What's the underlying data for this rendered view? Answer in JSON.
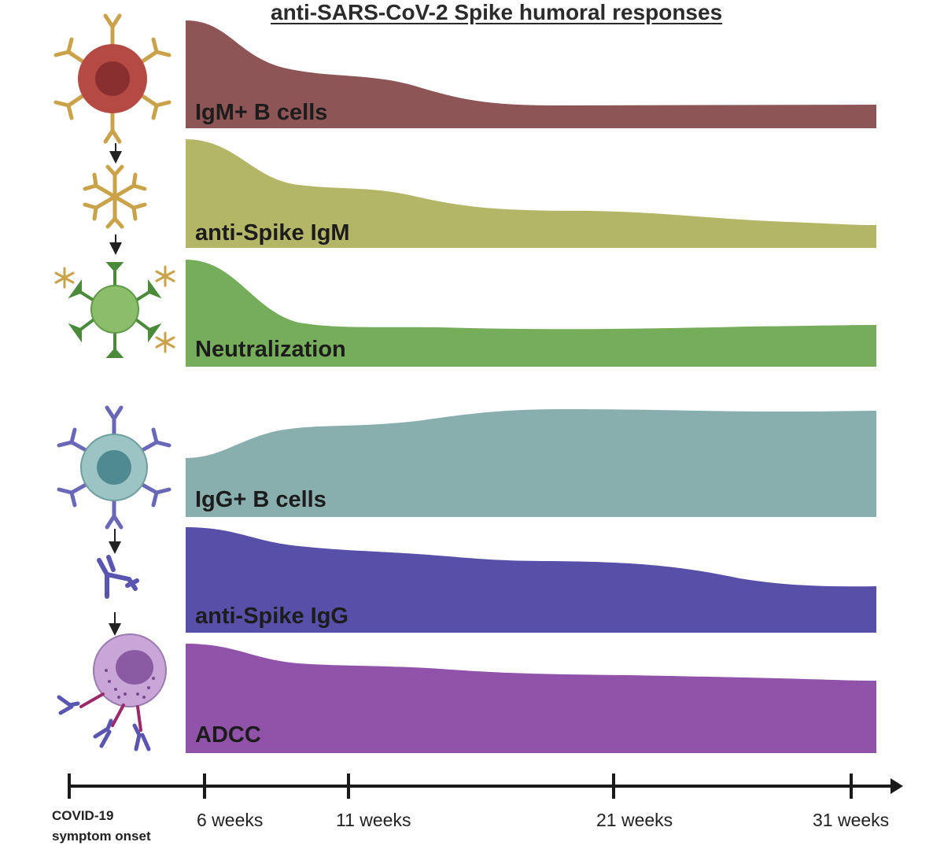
{
  "title": "anti-SARS-CoV-2 Spike humoral responses",
  "bands": [
    {
      "label": "IgM+ B cells",
      "color": "#8d5556"
    },
    {
      "label": "anti-Spike IgM",
      "color": "#b3b567"
    },
    {
      "label": "Neutralization",
      "color": "#76ad5a"
    },
    {
      "label": "IgG+ B cells",
      "color": "#88aeae"
    },
    {
      "label": "anti-Spike IgG",
      "color": "#574fa8"
    },
    {
      "label": "ADCC",
      "color": "#9152aa"
    }
  ],
  "timeline": {
    "onset_line1": "COVID-19",
    "onset_line2": "symptom onset",
    "ticks": [
      "6 weeks",
      "11 weeks",
      "21 weeks",
      "31 weeks"
    ]
  },
  "icons": [
    "igm-b-cell-icon",
    "igm-pentamer-icon",
    "neutralized-virus-icon",
    "igg-b-cell-icon",
    "igg-antibody-icon",
    "nk-cell-adcc-icon"
  ],
  "colors": {
    "igm_antibody": "#c9a24a",
    "igg_antibody": "#6a66b8",
    "axis": "#1a1a1a"
  }
}
